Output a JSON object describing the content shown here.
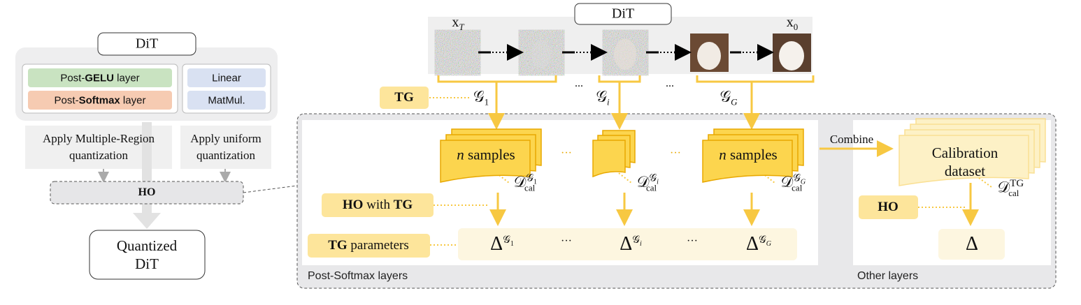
{
  "left": {
    "dit": "DiT",
    "post_gelu": [
      "Post-",
      "GELU",
      " layer"
    ],
    "post_softmax": [
      "Post-",
      "Softmax",
      " layer"
    ],
    "linear": "Linear",
    "matmul": "MatMul.",
    "multi_region": [
      "Apply Multiple-Region",
      "quantization"
    ],
    "uniform": [
      "Apply uniform",
      "quantization"
    ],
    "ho": "HO",
    "quantized": [
      "Quantized",
      "DiT"
    ]
  },
  "top": {
    "dit": "DiT",
    "x_start": {
      "base": "x",
      "sub": "T"
    },
    "x_end": {
      "base": "x",
      "sub": "0"
    },
    "tg": "TG",
    "groups": [
      {
        "base": "𝒢",
        "sub": "1"
      },
      {
        "base": "𝒢",
        "sub": "i"
      },
      {
        "base": "𝒢",
        "sub": "G"
      }
    ],
    "ellipsis": "..."
  },
  "post_softmax": {
    "samples": [
      {
        "var": "n",
        "text": " samples"
      },
      {
        "var": "n",
        "text": " samples"
      }
    ],
    "dots": "···",
    "datasets": [
      {
        "base": "𝒟",
        "sub": "cal",
        "sup_base": "𝒢",
        "sup_sub": "1"
      },
      {
        "base": "𝒟",
        "sub": "cal",
        "sup_base": "𝒢",
        "sup_sub": "i"
      },
      {
        "base": "𝒟",
        "sub": "cal",
        "sup_base": "𝒢",
        "sup_sub": "G"
      }
    ],
    "ho_with_tg": [
      "HO",
      " with ",
      "TG"
    ],
    "tg_parameters": [
      "TG",
      " parameters"
    ],
    "deltas": [
      {
        "base": "Δ",
        "sup_base": "𝒢",
        "sup_sub": "1"
      },
      {
        "base": "Δ",
        "sup_base": "𝒢",
        "sup_sub": "i"
      },
      {
        "base": "Δ",
        "sup_base": "𝒢",
        "sup_sub": "G"
      }
    ],
    "label": "Post-Softmax layers"
  },
  "other": {
    "combine": "Combine",
    "calibration": [
      "Calibration",
      "dataset"
    ],
    "dataset": {
      "base": "𝒟",
      "sub": "cal",
      "sup": "TG"
    },
    "ho": "HO",
    "delta": "Δ",
    "label": "Other layers"
  }
}
